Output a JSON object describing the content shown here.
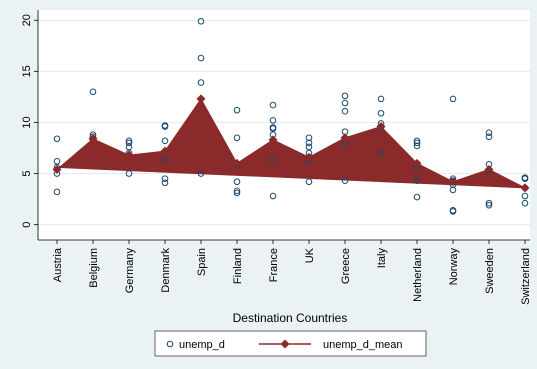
{
  "chart_data": {
    "type": "area",
    "xlabel": "Destination Countries",
    "ylabel": "",
    "ylim": [
      -1.5,
      21
    ],
    "yticks": [
      0,
      5,
      10,
      15,
      20
    ],
    "grid": true,
    "legend_position": "bottom",
    "colors": {
      "scatter": "#1a476f",
      "mean": "#8b2a2a",
      "band": "#8b2a2a",
      "grid": "#ffffff",
      "plot_bg": "#ffffff",
      "frame_bg": "#eaf2f3"
    },
    "categories": [
      "Austria",
      "Belgium",
      "Germany",
      "Denmark",
      "Spain",
      "Finland",
      "France",
      "UK",
      "Greece",
      "Italy",
      "Netherland",
      "Norway",
      "Sweeden",
      "Switzerland"
    ],
    "series": [
      {
        "name": "unemp_d",
        "type": "scatter",
        "points": [
          [
            0,
            3.2
          ],
          [
            0,
            5.0
          ],
          [
            0,
            5.6
          ],
          [
            0,
            6.2
          ],
          [
            0,
            8.4
          ],
          [
            1,
            8.6
          ],
          [
            1,
            8.8
          ],
          [
            1,
            13.0
          ],
          [
            2,
            5.0
          ],
          [
            2,
            7.0
          ],
          [
            2,
            7.6
          ],
          [
            2,
            8.0
          ],
          [
            2,
            8.2
          ],
          [
            3,
            4.1
          ],
          [
            3,
            4.5
          ],
          [
            3,
            6.4
          ],
          [
            3,
            8.2
          ],
          [
            3,
            9.6
          ],
          [
            3,
            9.7
          ],
          [
            4,
            5.0
          ],
          [
            4,
            13.9
          ],
          [
            4,
            16.3
          ],
          [
            4,
            19.9
          ],
          [
            5,
            3.1
          ],
          [
            5,
            3.3
          ],
          [
            5,
            4.2
          ],
          [
            5,
            5.9
          ],
          [
            5,
            8.5
          ],
          [
            5,
            11.2
          ],
          [
            6,
            2.8
          ],
          [
            6,
            6.3
          ],
          [
            6,
            8.8
          ],
          [
            6,
            9.4
          ],
          [
            6,
            9.5
          ],
          [
            6,
            10.2
          ],
          [
            6,
            11.7
          ],
          [
            7,
            4.2
          ],
          [
            7,
            6.2
          ],
          [
            7,
            7.0
          ],
          [
            7,
            7.6
          ],
          [
            7,
            8.0
          ],
          [
            7,
            8.5
          ],
          [
            8,
            4.3
          ],
          [
            8,
            8.0
          ],
          [
            8,
            9.1
          ],
          [
            8,
            11.1
          ],
          [
            8,
            11.9
          ],
          [
            8,
            12.6
          ],
          [
            9,
            7.0
          ],
          [
            9,
            9.5
          ],
          [
            9,
            9.9
          ],
          [
            9,
            10.9
          ],
          [
            9,
            12.3
          ],
          [
            10,
            2.7
          ],
          [
            10,
            4.3
          ],
          [
            10,
            5.6
          ],
          [
            10,
            7.7
          ],
          [
            10,
            8.0
          ],
          [
            10,
            8.2
          ],
          [
            11,
            1.3
          ],
          [
            11,
            1.4
          ],
          [
            11,
            3.4
          ],
          [
            11,
            3.9
          ],
          [
            11,
            4.3
          ],
          [
            11,
            4.5
          ],
          [
            11,
            12.3
          ],
          [
            12,
            1.9
          ],
          [
            12,
            2.1
          ],
          [
            12,
            5.3
          ],
          [
            12,
            5.9
          ],
          [
            12,
            8.6
          ],
          [
            12,
            9.0
          ],
          [
            13,
            2.1
          ],
          [
            13,
            2.8
          ],
          [
            13,
            3.6
          ],
          [
            13,
            4.5
          ],
          [
            13,
            4.6
          ]
        ]
      },
      {
        "name": "unemp_d_mean",
        "type": "line-area",
        "values": [
          5.4,
          8.4,
          6.8,
          7.2,
          12.3,
          6.0,
          8.3,
          6.6,
          8.5,
          9.6,
          6.0,
          4.2,
          5.4,
          3.6
        ]
      }
    ],
    "band_baseline": [
      5.6,
      3.6
    ]
  }
}
